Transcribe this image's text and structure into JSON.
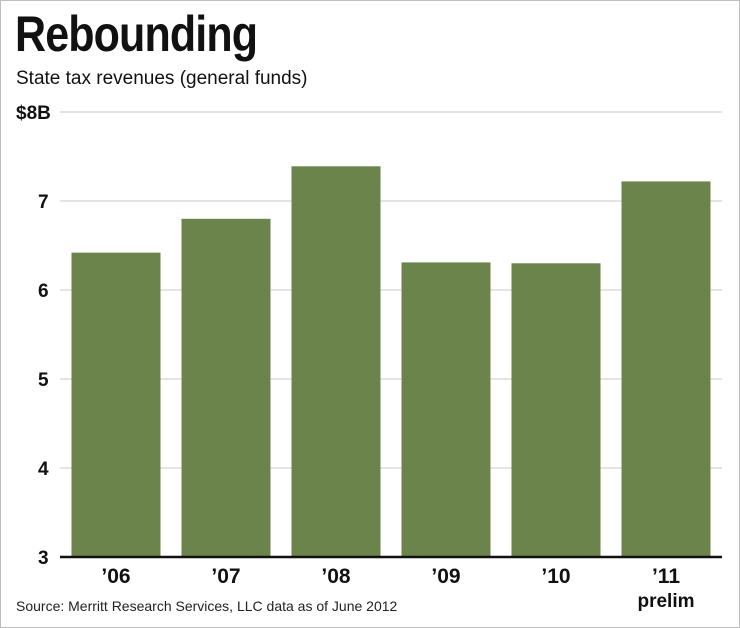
{
  "title": "Rebounding",
  "subtitle": "State tax revenues (general funds)",
  "source": "Source: Merritt Research Services, LLC data as of June 2012",
  "colors": {
    "bar": "#6b844c",
    "grid": "#c8c8c8",
    "axis": "#111111"
  },
  "chart_data": {
    "type": "bar",
    "title": "Rebounding",
    "subtitle": "State tax revenues (general funds)",
    "xlabel": "",
    "ylabel": "",
    "categories": [
      "’06",
      "’07",
      "’08",
      "’09",
      "’10",
      "’11"
    ],
    "category_notes": [
      "",
      "",
      "",
      "",
      "",
      "prelim"
    ],
    "values": [
      6.42,
      6.8,
      7.39,
      6.31,
      6.3,
      7.22
    ],
    "ylim": [
      3,
      8
    ],
    "yticks": [
      {
        "value": 3,
        "label": "3"
      },
      {
        "value": 4,
        "label": "4"
      },
      {
        "value": 5,
        "label": "5"
      },
      {
        "value": 6,
        "label": "6"
      },
      {
        "value": 7,
        "label": "7"
      },
      {
        "value": 8,
        "label": "$8B"
      }
    ],
    "grid": true,
    "units": "billions of dollars"
  }
}
